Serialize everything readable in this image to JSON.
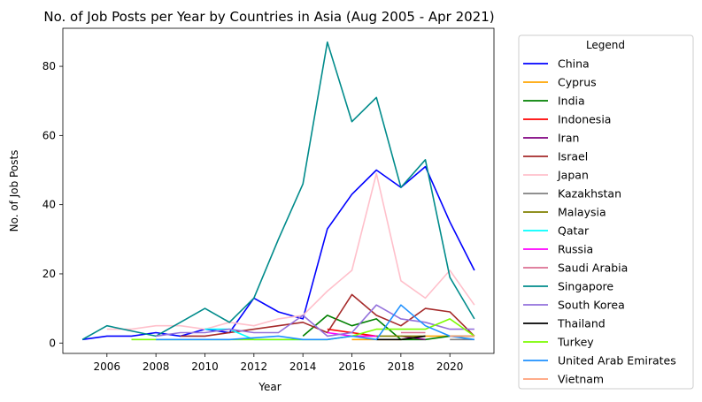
{
  "chart_data": {
    "type": "line",
    "title": "No. of Job Posts per Year by Countries in Asia (Aug 2005 - Apr 2021)",
    "xlabel": "Year",
    "ylabel": "No. of Job Posts",
    "xlim": [
      2004.2,
      2021.8
    ],
    "ylim": [
      -3,
      91
    ],
    "xticks": [
      2006,
      2008,
      2010,
      2012,
      2014,
      2016,
      2018,
      2020
    ],
    "yticks": [
      0,
      20,
      40,
      60,
      80
    ],
    "grid": false,
    "legend": {
      "title": "Legend",
      "placement": "outside-right"
    },
    "series": [
      {
        "name": "China",
        "color": "#0000ff",
        "points": [
          [
            2005,
            1
          ],
          [
            2006,
            2
          ],
          [
            2007,
            2
          ],
          [
            2008,
            3
          ],
          [
            2009,
            2
          ],
          [
            2010,
            4
          ],
          [
            2011,
            3
          ],
          [
            2012,
            13
          ],
          [
            2013,
            9
          ],
          [
            2014,
            7
          ],
          [
            2015,
            33
          ],
          [
            2016,
            43
          ],
          [
            2017,
            50
          ],
          [
            2018,
            45
          ],
          [
            2019,
            51
          ],
          [
            2020,
            35
          ],
          [
            2021,
            21
          ]
        ]
      },
      {
        "name": "Cyprus",
        "color": "#ffa500",
        "points": [
          [
            2016,
            1
          ],
          [
            2017,
            1
          ],
          [
            2018,
            1
          ],
          [
            2019,
            2
          ],
          [
            2020,
            2
          ],
          [
            2021,
            2
          ]
        ]
      },
      {
        "name": "India",
        "color": "#008000",
        "points": [
          [
            2014,
            2
          ],
          [
            2015,
            8
          ],
          [
            2016,
            5
          ],
          [
            2017,
            7
          ],
          [
            2018,
            1
          ],
          [
            2019,
            1
          ],
          [
            2020,
            2
          ],
          [
            2021,
            2
          ]
        ]
      },
      {
        "name": "Indonesia",
        "color": "#ff0000",
        "points": [
          [
            2015,
            4
          ],
          [
            2016,
            3
          ],
          [
            2017,
            2
          ]
        ]
      },
      {
        "name": "Iran",
        "color": "#800080",
        "points": [
          [
            2018,
            2
          ],
          [
            2019,
            1
          ]
        ]
      },
      {
        "name": "Israel",
        "color": "#a52a2a",
        "points": [
          [
            2009,
            2
          ],
          [
            2010,
            2
          ],
          [
            2014,
            6
          ],
          [
            2015,
            3
          ],
          [
            2016,
            14
          ],
          [
            2017,
            8
          ],
          [
            2018,
            5
          ],
          [
            2019,
            10
          ],
          [
            2020,
            9
          ],
          [
            2021,
            2
          ]
        ]
      },
      {
        "name": "Japan",
        "color": "#ffc0cb",
        "points": [
          [
            2006,
            4
          ],
          [
            2007,
            4
          ],
          [
            2008,
            5
          ],
          [
            2009,
            5
          ],
          [
            2010,
            4
          ],
          [
            2011,
            6
          ],
          [
            2012,
            5
          ],
          [
            2013,
            7
          ],
          [
            2014,
            8
          ],
          [
            2015,
            15
          ],
          [
            2016,
            21
          ],
          [
            2017,
            49
          ],
          [
            2018,
            18
          ],
          [
            2019,
            13
          ],
          [
            2020,
            21
          ],
          [
            2021,
            11
          ]
        ]
      },
      {
        "name": "Kazakhstan",
        "color": "#808080",
        "points": [
          [
            2020,
            1
          ],
          [
            2021,
            1
          ]
        ]
      },
      {
        "name": "Malaysia",
        "color": "#808000",
        "points": [
          [
            2016,
            2
          ],
          [
            2017,
            2
          ],
          [
            2018,
            2
          ],
          [
            2019,
            2
          ]
        ]
      },
      {
        "name": "Qatar",
        "color": "#00ffff",
        "points": [
          [
            2010,
            4
          ],
          [
            2011,
            4
          ],
          [
            2012,
            1
          ],
          [
            2013,
            1
          ],
          [
            2014,
            1
          ]
        ]
      },
      {
        "name": "Russia",
        "color": "#ff00ff",
        "points": [
          [
            2015,
            3
          ],
          [
            2016,
            2
          ],
          [
            2017,
            2
          ]
        ]
      },
      {
        "name": "Saudi Arabia",
        "color": "#db7093",
        "points": [
          [
            2018,
            3
          ],
          [
            2019,
            3
          ]
        ]
      },
      {
        "name": "Singapore",
        "color": "#008b8b",
        "points": [
          [
            2005,
            1
          ],
          [
            2006,
            5
          ],
          [
            2008,
            2
          ],
          [
            2009,
            6
          ],
          [
            2010,
            10
          ],
          [
            2011,
            6
          ],
          [
            2012,
            13
          ],
          [
            2013,
            30
          ],
          [
            2014,
            46
          ],
          [
            2015,
            87
          ],
          [
            2016,
            64
          ],
          [
            2017,
            71
          ],
          [
            2018,
            45
          ],
          [
            2019,
            53
          ],
          [
            2020,
            19
          ],
          [
            2021,
            7
          ]
        ]
      },
      {
        "name": "South Korea",
        "color": "#9370db",
        "points": [
          [
            2008,
            2
          ],
          [
            2009,
            3
          ],
          [
            2010,
            3
          ],
          [
            2011,
            4
          ],
          [
            2012,
            3
          ],
          [
            2013,
            3
          ],
          [
            2014,
            8
          ],
          [
            2015,
            2
          ],
          [
            2016,
            3
          ],
          [
            2017,
            11
          ],
          [
            2018,
            7
          ],
          [
            2019,
            6
          ],
          [
            2020,
            4
          ],
          [
            2021,
            4
          ]
        ]
      },
      {
        "name": "Thailand",
        "color": "#000000",
        "points": [
          [
            2017,
            1
          ],
          [
            2018,
            1
          ],
          [
            2019,
            2
          ]
        ]
      },
      {
        "name": "Turkey",
        "color": "#7cfc00",
        "points": [
          [
            2007,
            1
          ],
          [
            2008,
            1
          ],
          [
            2009,
            1
          ],
          [
            2014,
            1
          ],
          [
            2015,
            1
          ],
          [
            2016,
            2
          ],
          [
            2017,
            4
          ],
          [
            2018,
            4
          ],
          [
            2019,
            4
          ],
          [
            2020,
            7
          ],
          [
            2021,
            2
          ]
        ]
      },
      {
        "name": "United Arab Emirates",
        "color": "#1e90ff",
        "points": [
          [
            2008,
            1
          ],
          [
            2009,
            1
          ],
          [
            2010,
            1
          ],
          [
            2011,
            1
          ],
          [
            2013,
            2
          ],
          [
            2014,
            1
          ],
          [
            2015,
            1
          ],
          [
            2016,
            2
          ],
          [
            2017,
            1
          ],
          [
            2018,
            11
          ],
          [
            2019,
            5
          ],
          [
            2020,
            2
          ],
          [
            2021,
            1
          ]
        ]
      },
      {
        "name": "Vietnam",
        "color": "#ffa07a",
        "points": [
          [
            2020,
            2
          ],
          [
            2021,
            2
          ]
        ]
      }
    ]
  }
}
